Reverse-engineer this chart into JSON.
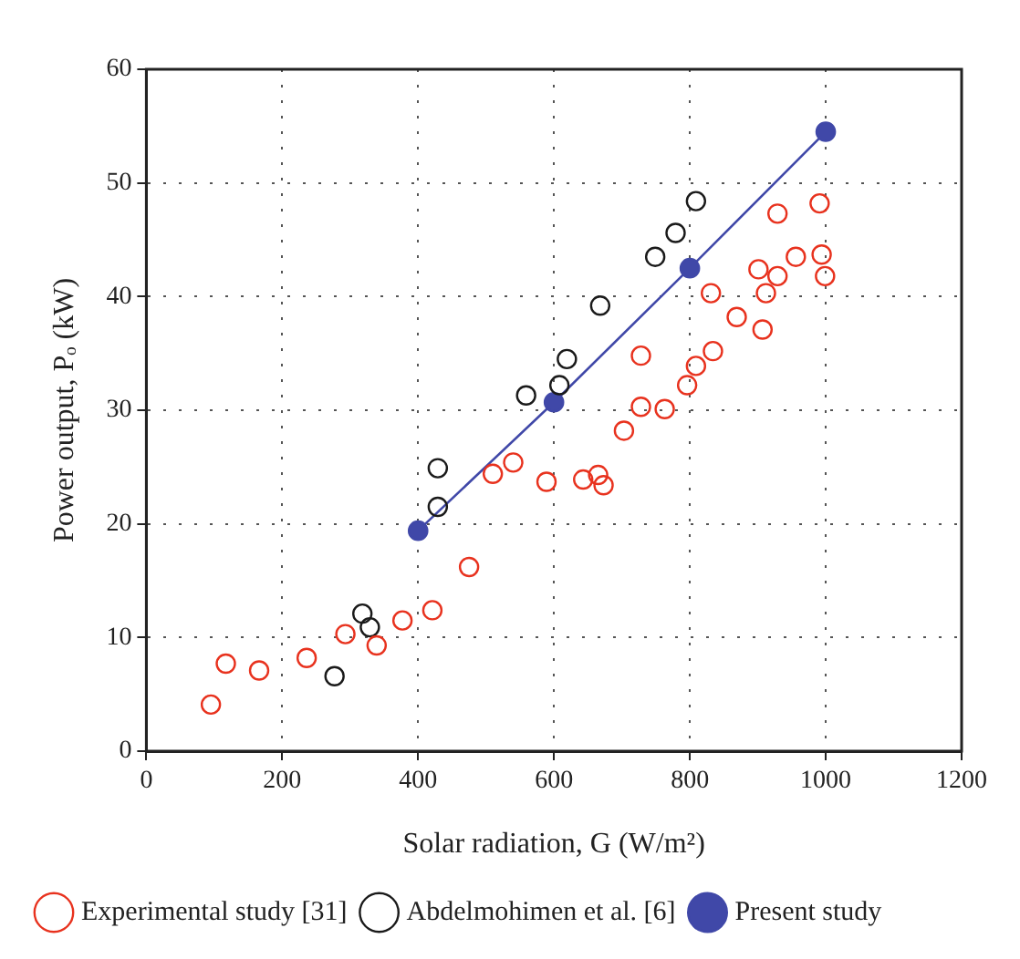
{
  "chart_data": {
    "type": "scatter",
    "xlabel": "Solar radiation, G (W/m²)",
    "ylabel": "Power output, Pₒ (kW)",
    "xlim": [
      0,
      1200
    ],
    "xticks": [
      0,
      200,
      400,
      600,
      800,
      1000,
      1200
    ],
    "ylim": [
      0,
      60
    ],
    "yticks": [
      0,
      10,
      20,
      30,
      40,
      50,
      60
    ],
    "grid": true,
    "legend": "bottom",
    "marker": "circle",
    "series": [
      {
        "name": "Experimental study [31]",
        "color": "#e8321e",
        "x": [
          95,
          117,
          166,
          236,
          293,
          339,
          377,
          421,
          475,
          510,
          540,
          589,
          643,
          665,
          673,
          703,
          728,
          728,
          763,
          796,
          809,
          834,
          831,
          869,
          907,
          901,
          912,
          929,
          929,
          956,
          991,
          994,
          999
        ],
        "values": [
          4.1,
          7.7,
          7.1,
          8.2,
          10.3,
          9.3,
          11.5,
          12.4,
          16.2,
          24.4,
          25.4,
          23.7,
          23.9,
          24.3,
          23.4,
          28.2,
          34.8,
          30.3,
          30.1,
          32.2,
          33.9,
          35.2,
          40.3,
          38.2,
          37.1,
          42.4,
          40.3,
          41.8,
          47.3,
          43.5,
          48.2,
          43.7,
          41.8
        ]
      },
      {
        "name": "Abdelmohimen et al. [6]",
        "color": "#1a1a1a",
        "x": [
          277,
          318,
          329,
          429,
          429,
          559,
          608,
          619,
          668,
          749,
          779,
          809
        ],
        "values": [
          6.6,
          12.1,
          10.9,
          21.5,
          24.9,
          31.3,
          32.2,
          34.5,
          39.2,
          43.5,
          45.6,
          48.4
        ]
      },
      {
        "name": "Present study",
        "type": "line",
        "color": "#4048a8",
        "x": [
          400,
          600,
          800,
          1000
        ],
        "values": [
          19.4,
          30.7,
          42.5,
          54.5
        ]
      }
    ]
  }
}
